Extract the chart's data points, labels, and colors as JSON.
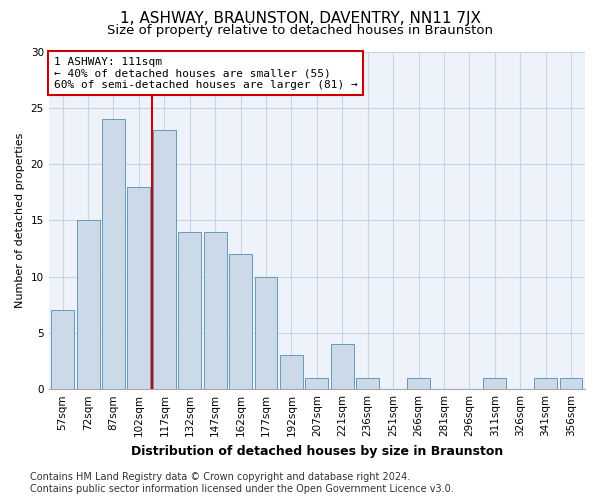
{
  "title": "1, ASHWAY, BRAUNSTON, DAVENTRY, NN11 7JX",
  "subtitle": "Size of property relative to detached houses in Braunston",
  "xlabel": "Distribution of detached houses by size in Braunston",
  "ylabel": "Number of detached properties",
  "categories": [
    "57sqm",
    "72sqm",
    "87sqm",
    "102sqm",
    "117sqm",
    "132sqm",
    "147sqm",
    "162sqm",
    "177sqm",
    "192sqm",
    "207sqm",
    "221sqm",
    "236sqm",
    "251sqm",
    "266sqm",
    "281sqm",
    "296sqm",
    "311sqm",
    "326sqm",
    "341sqm",
    "356sqm"
  ],
  "values": [
    7,
    15,
    24,
    18,
    23,
    14,
    14,
    12,
    10,
    3,
    1,
    4,
    1,
    0,
    1,
    0,
    0,
    1,
    0,
    1,
    1
  ],
  "bar_color": "#ccd9e8",
  "bar_edge_color": "#6699bb",
  "grid_color": "#c8d4e4",
  "background_color": "#eef2fb",
  "annotation_line1": "1 ASHWAY: 111sqm",
  "annotation_line2": "← 40% of detached houses are smaller (55)",
  "annotation_line3": "60% of semi-detached houses are larger (81) →",
  "annotation_box_edge_color": "#cc0000",
  "vline_x": 3.5,
  "vline_color": "#cc0000",
  "ylim": [
    0,
    30
  ],
  "yticks": [
    0,
    5,
    10,
    15,
    20,
    25,
    30
  ],
  "footnote": "Contains HM Land Registry data © Crown copyright and database right 2024.\nContains public sector information licensed under the Open Government Licence v3.0.",
  "title_fontsize": 11,
  "subtitle_fontsize": 9.5,
  "xlabel_fontsize": 9,
  "ylabel_fontsize": 8,
  "tick_fontsize": 7.5,
  "annot_fontsize": 8,
  "footnote_fontsize": 7
}
